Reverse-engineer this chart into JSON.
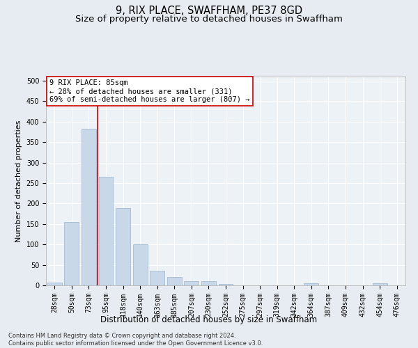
{
  "title": "9, RIX PLACE, SWAFFHAM, PE37 8GD",
  "subtitle": "Size of property relative to detached houses in Swaffham",
  "xlabel": "Distribution of detached houses by size in Swaffham",
  "ylabel": "Number of detached properties",
  "categories": [
    "28sqm",
    "50sqm",
    "73sqm",
    "95sqm",
    "118sqm",
    "140sqm",
    "163sqm",
    "185sqm",
    "207sqm",
    "230sqm",
    "252sqm",
    "275sqm",
    "297sqm",
    "319sqm",
    "342sqm",
    "364sqm",
    "387sqm",
    "409sqm",
    "432sqm",
    "454sqm",
    "476sqm"
  ],
  "values": [
    6,
    155,
    383,
    265,
    188,
    100,
    35,
    20,
    10,
    10,
    4,
    0,
    0,
    0,
    0,
    5,
    0,
    0,
    0,
    5,
    0
  ],
  "bar_color": "#c8d8e8",
  "bar_edge_color": "#9ab4cc",
  "vline_x_index": 2,
  "vline_color": "#cc0000",
  "annotation_text": "9 RIX PLACE: 85sqm\n← 28% of detached houses are smaller (331)\n69% of semi-detached houses are larger (807) →",
  "annotation_box_facecolor": "#ffffff",
  "annotation_box_edgecolor": "#cc0000",
  "ylim": [
    0,
    510
  ],
  "yticks": [
    0,
    50,
    100,
    150,
    200,
    250,
    300,
    350,
    400,
    450,
    500
  ],
  "footer": "Contains HM Land Registry data © Crown copyright and database right 2024.\nContains public sector information licensed under the Open Government Licence v3.0.",
  "background_color": "#e6ecf2",
  "plot_background_color": "#edf2f7",
  "grid_color": "#ffffff",
  "title_fontsize": 10.5,
  "subtitle_fontsize": 9.5,
  "xlabel_fontsize": 8.5,
  "ylabel_fontsize": 8,
  "tick_fontsize": 7,
  "footer_fontsize": 6,
  "annotation_fontsize": 7.5
}
